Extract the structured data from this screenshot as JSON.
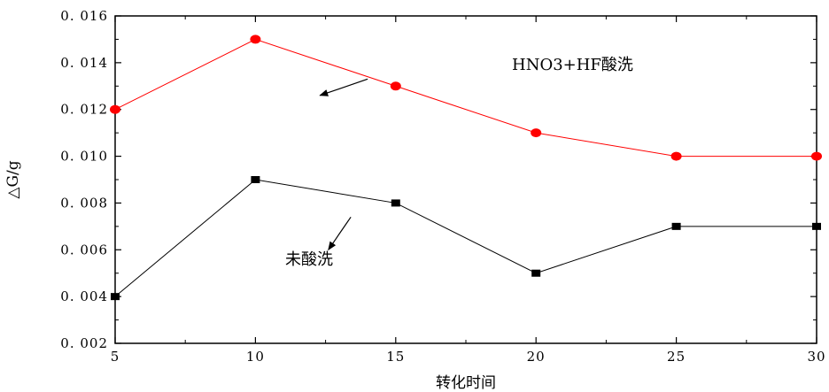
{
  "chart_data": {
    "type": "line",
    "title": "",
    "xlabel": "转化时间",
    "ylabel": "△G/g",
    "x": [
      5,
      10,
      15,
      20,
      25,
      30
    ],
    "xlim": [
      5,
      30
    ],
    "ylim": [
      0.002,
      0.016
    ],
    "xticks": [
      "5",
      "10",
      "15",
      "20",
      "25",
      "30"
    ],
    "yticks": [
      "0. 002",
      "0. 004",
      "0. 006",
      "0. 008",
      "0. 010",
      "0. 012",
      "0. 014",
      "0. 016"
    ],
    "ytick_values": [
      0.002,
      0.004,
      0.006,
      0.008,
      0.01,
      0.012,
      0.014,
      0.016
    ],
    "grid": false,
    "series": [
      {
        "name": "HNO3+HF酸洗",
        "values": [
          0.012,
          0.015,
          0.013,
          0.011,
          0.01,
          0.01
        ],
        "color": "#ff0000",
        "marker": "circle"
      },
      {
        "name": "未酸洗",
        "values": [
          0.004,
          0.009,
          0.008,
          0.005,
          0.007,
          0.007
        ],
        "color": "#000000",
        "marker": "square"
      }
    ],
    "annotations": [
      {
        "text": "HNO3+HF酸洗",
        "arrow_from": [
          14,
          0.0133
        ],
        "arrow_to": [
          12.3,
          0.0126
        ]
      },
      {
        "text": "未酸洗",
        "arrow_from": [
          13.4,
          0.0074
        ],
        "arrow_to": [
          12.6,
          0.006
        ]
      }
    ]
  }
}
